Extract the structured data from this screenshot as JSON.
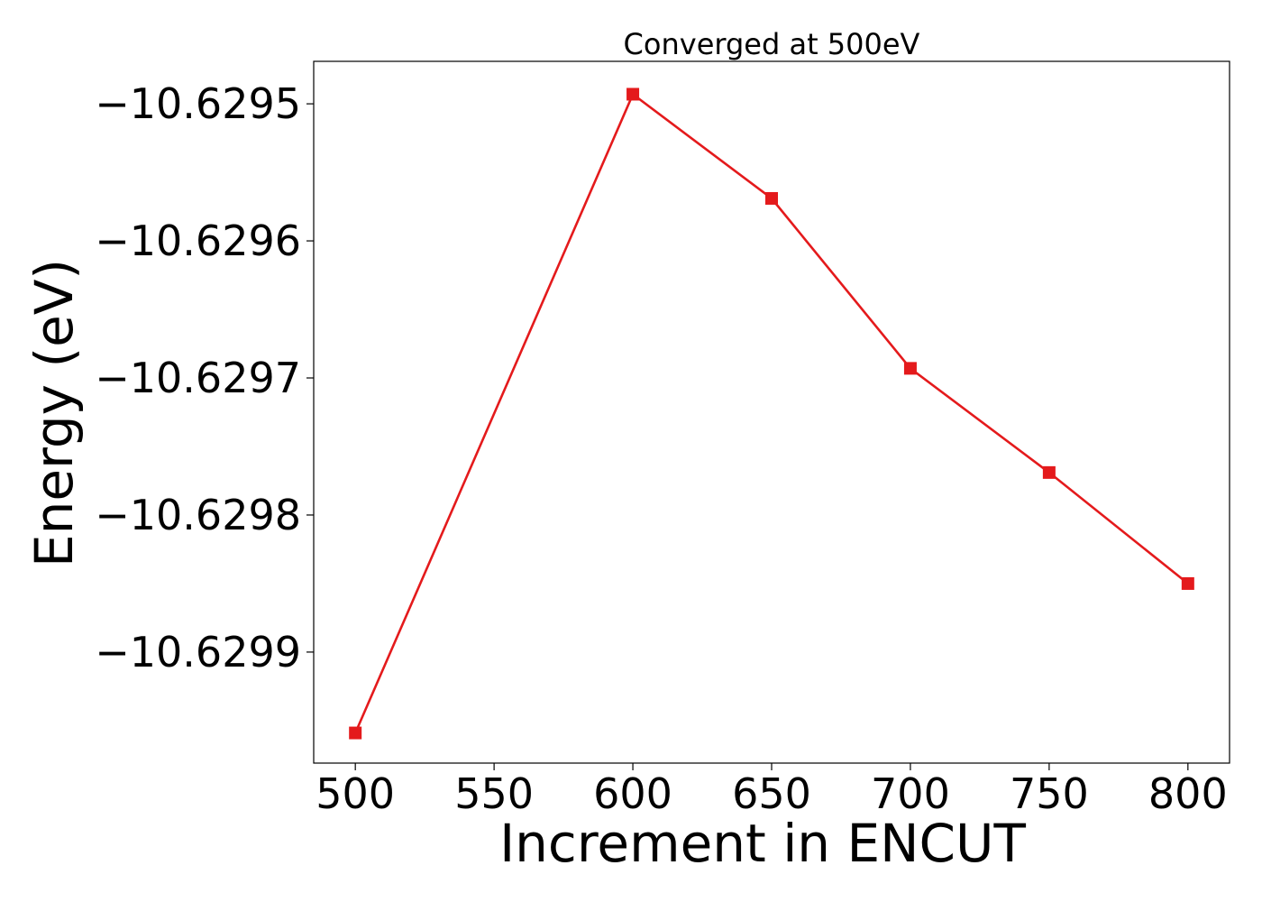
{
  "chart_data": {
    "type": "line",
    "title": "Converged at 500eV",
    "xlabel": "Increment in ENCUT",
    "ylabel": "Energy (eV)",
    "x": [
      500,
      600,
      650,
      700,
      750,
      800
    ],
    "series": [
      {
        "values": [
          -10.629959,
          -10.629493,
          -10.629569,
          -10.629693,
          -10.629769,
          -10.62985
        ],
        "color": "#e41a1c",
        "marker": "square"
      }
    ],
    "xlim": [
      485,
      815
    ],
    "ylim": [
      -10.629981,
      -10.629469
    ],
    "xticks": [
      500,
      550,
      600,
      650,
      700,
      750,
      800
    ],
    "xtick_labels": [
      "500",
      "550",
      "600",
      "650",
      "700",
      "750",
      "800"
    ],
    "yticks": [
      -10.6295,
      -10.6296,
      -10.6297,
      -10.6298,
      -10.6299
    ],
    "ytick_labels": [
      "−10.6295",
      "−10.6296",
      "−10.6297",
      "−10.6298",
      "−10.6299"
    ],
    "grid": false,
    "legend": "none"
  }
}
